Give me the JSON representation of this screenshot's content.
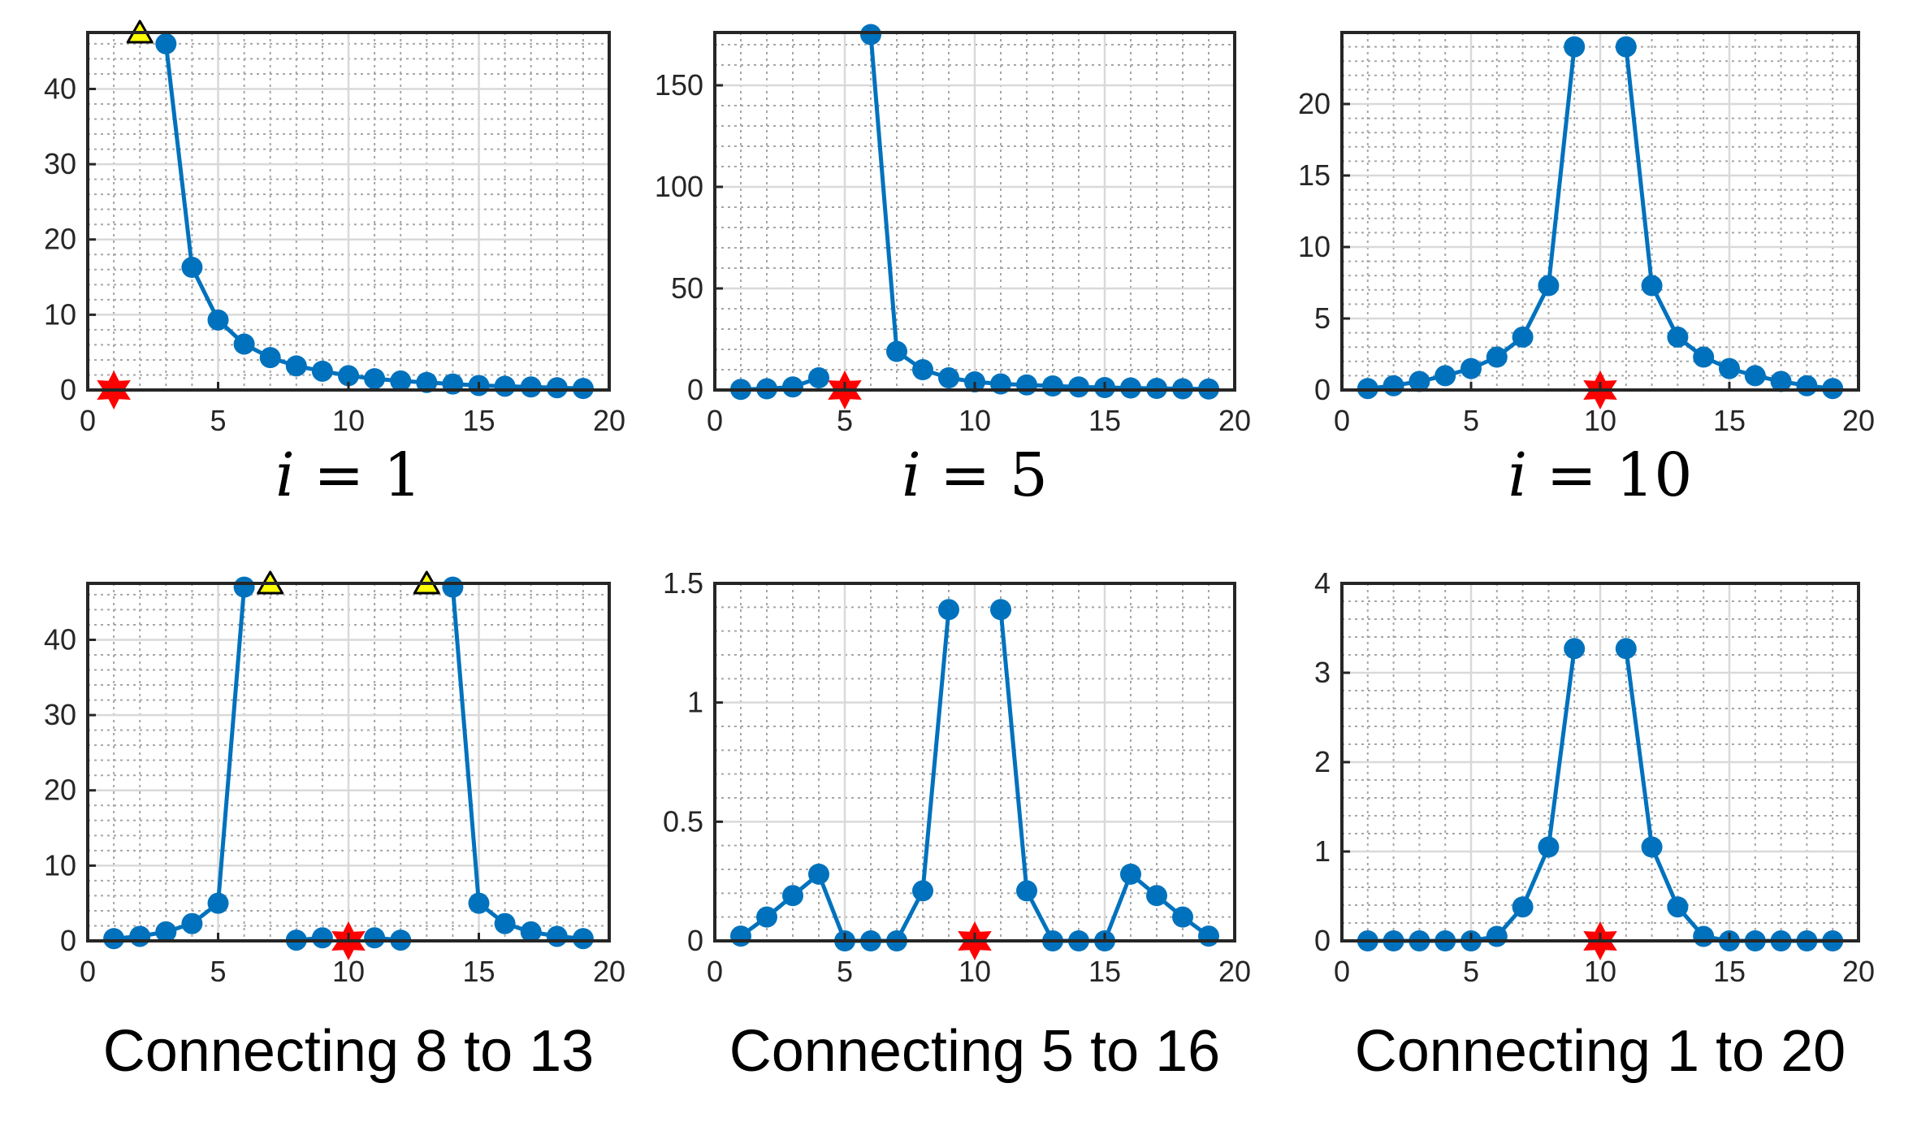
{
  "colors": {
    "series": "#0072BD",
    "star": "#FF0000",
    "triangle_fill": "#FFFF00",
    "triangle_edge": "#000000",
    "axes": "#262626",
    "major_grid": "#D9D9D9",
    "minor_grid": "#A6A6A6"
  },
  "marker_legend": {
    "star": "red-star-marker",
    "triangle": "yellow-triangle-marker"
  },
  "chart_data": [
    {
      "type": "line",
      "caption": {
        "var": "i",
        "eq": " = ",
        "val": "1"
      },
      "x": [
        1,
        2,
        3,
        4,
        5,
        6,
        7,
        8,
        9,
        10,
        11,
        12,
        13,
        14,
        15,
        16,
        17,
        18,
        19
      ],
      "values": [
        null,
        null,
        46,
        16.3,
        9.3,
        6.1,
        4.3,
        3.2,
        2.5,
        1.9,
        1.5,
        1.2,
        1.0,
        0.8,
        0.6,
        0.5,
        0.4,
        0.3,
        0.2
      ],
      "stars": [
        {
          "x": 1,
          "y": 0
        }
      ],
      "triangles": [
        {
          "x": 2,
          "y": 47.5
        }
      ],
      "xlim": [
        0,
        20
      ],
      "ylim": [
        0,
        47.5
      ],
      "xticks": [
        0,
        5,
        10,
        15,
        20
      ],
      "yticks": [
        0,
        10,
        20,
        30,
        40
      ],
      "xtick_labels": [
        "0",
        "5",
        "10",
        "15",
        "20"
      ],
      "ytick_labels": [
        "0",
        "10",
        "20",
        "30",
        "40"
      ],
      "grid": true,
      "minor_grid": true
    },
    {
      "type": "line",
      "caption": {
        "var": "i",
        "eq": " = ",
        "val": "5"
      },
      "x": [
        1,
        2,
        3,
        4,
        5,
        6,
        7,
        8,
        9,
        10,
        11,
        12,
        13,
        14,
        15,
        16,
        17,
        18,
        19
      ],
      "values": [
        0.3,
        0.6,
        1.5,
        6.0,
        null,
        175,
        19,
        10,
        6,
        4,
        3,
        2.5,
        2,
        1.5,
        1.2,
        1,
        0.8,
        0.6,
        0.5
      ],
      "stars": [
        {
          "x": 5,
          "y": 0
        }
      ],
      "triangles": [],
      "xlim": [
        0,
        20
      ],
      "ylim": [
        0,
        176
      ],
      "xticks": [
        0,
        5,
        10,
        15,
        20
      ],
      "yticks": [
        0,
        50,
        100,
        150
      ],
      "xtick_labels": [
        "0",
        "5",
        "10",
        "15",
        "20"
      ],
      "ytick_labels": [
        "0",
        "50",
        "100",
        "150"
      ],
      "grid": true,
      "minor_grid": true
    },
    {
      "type": "line",
      "caption": {
        "var": "i",
        "eq": " = ",
        "val": "10"
      },
      "x": [
        1,
        2,
        3,
        4,
        5,
        6,
        7,
        8,
        9,
        10,
        11,
        12,
        13,
        14,
        15,
        16,
        17,
        18,
        19
      ],
      "values": [
        0.1,
        0.3,
        0.6,
        1.0,
        1.5,
        2.3,
        3.7,
        7.3,
        24,
        null,
        24,
        7.3,
        3.7,
        2.3,
        1.5,
        1.0,
        0.6,
        0.3,
        0.1
      ],
      "stars": [
        {
          "x": 10,
          "y": 0
        }
      ],
      "triangles": [],
      "xlim": [
        0,
        20
      ],
      "ylim": [
        0,
        25
      ],
      "xticks": [
        0,
        5,
        10,
        15,
        20
      ],
      "yticks": [
        0,
        5,
        10,
        15,
        20
      ],
      "xtick_labels": [
        "0",
        "5",
        "10",
        "15",
        "20"
      ],
      "ytick_labels": [
        "0",
        "5",
        "10",
        "15",
        "20"
      ],
      "grid": true,
      "minor_grid": true
    },
    {
      "type": "line",
      "caption": {
        "text": "Connecting 8 to 13"
      },
      "x": [
        1,
        2,
        3,
        4,
        5,
        6,
        7,
        8,
        9,
        10,
        11,
        12,
        13,
        14,
        15,
        16,
        17,
        18,
        19
      ],
      "values": [
        0.3,
        0.6,
        1.2,
        2.3,
        5.0,
        47,
        null,
        0.1,
        0.4,
        null,
        0.4,
        0.1,
        null,
        47,
        5.0,
        2.3,
        1.2,
        0.6,
        0.3
      ],
      "stars": [
        {
          "x": 10,
          "y": 0
        }
      ],
      "triangles": [
        {
          "x": 7,
          "y": 47.5
        },
        {
          "x": 13,
          "y": 47.5
        }
      ],
      "xlim": [
        0,
        20
      ],
      "ylim": [
        0,
        47.5
      ],
      "xticks": [
        0,
        5,
        10,
        15,
        20
      ],
      "yticks": [
        0,
        10,
        20,
        30,
        40
      ],
      "xtick_labels": [
        "0",
        "5",
        "10",
        "15",
        "20"
      ],
      "ytick_labels": [
        "0",
        "10",
        "20",
        "30",
        "40"
      ],
      "grid": true,
      "minor_grid": true
    },
    {
      "type": "line",
      "caption": {
        "text": "Connecting 5 to 16"
      },
      "x": [
        1,
        2,
        3,
        4,
        5,
        6,
        7,
        8,
        9,
        10,
        11,
        12,
        13,
        14,
        15,
        16,
        17,
        18,
        19
      ],
      "values": [
        0.02,
        0.1,
        0.19,
        0.28,
        0,
        0,
        0,
        0.21,
        1.39,
        null,
        1.39,
        0.21,
        0,
        0,
        0,
        0.28,
        0.19,
        0.1,
        0.02
      ],
      "stars": [
        {
          "x": 10,
          "y": 0
        }
      ],
      "triangles": [],
      "xlim": [
        0,
        20
      ],
      "ylim": [
        0,
        1.5
      ],
      "xticks": [
        0,
        5,
        10,
        15,
        20
      ],
      "yticks": [
        0,
        0.5,
        1,
        1.5
      ],
      "xtick_labels": [
        "0",
        "5",
        "10",
        "15",
        "20"
      ],
      "ytick_labels": [
        "0",
        "0.5",
        "1",
        "1.5"
      ],
      "grid": true,
      "minor_grid": true
    },
    {
      "type": "line",
      "caption": {
        "text": "Connecting 1 to 20"
      },
      "x": [
        1,
        2,
        3,
        4,
        5,
        6,
        7,
        8,
        9,
        10,
        11,
        12,
        13,
        14,
        15,
        16,
        17,
        18,
        19
      ],
      "values": [
        0,
        0,
        0,
        0,
        0,
        0.05,
        0.38,
        1.05,
        3.27,
        null,
        3.27,
        1.05,
        0.38,
        0.05,
        0,
        0,
        0,
        0,
        0
      ],
      "stars": [
        {
          "x": 10,
          "y": 0
        }
      ],
      "triangles": [],
      "xlim": [
        0,
        20
      ],
      "ylim": [
        0,
        4
      ],
      "xticks": [
        0,
        5,
        10,
        15,
        20
      ],
      "yticks": [
        0,
        1,
        2,
        3,
        4
      ],
      "xtick_labels": [
        "0",
        "5",
        "10",
        "15",
        "20"
      ],
      "ytick_labels": [
        "0",
        "1",
        "2",
        "3",
        "4"
      ],
      "grid": true,
      "minor_grid": true
    }
  ]
}
